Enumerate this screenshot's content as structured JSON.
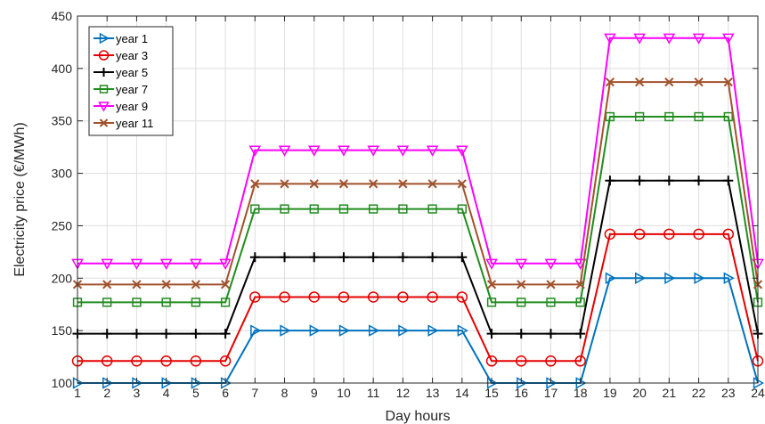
{
  "chart_data": {
    "type": "line",
    "xlabel": "Day hours",
    "ylabel": "Electricity price (€/MWh)",
    "x": [
      1,
      2,
      3,
      4,
      5,
      6,
      7,
      8,
      9,
      10,
      11,
      12,
      13,
      14,
      15,
      16,
      17,
      18,
      19,
      20,
      21,
      22,
      23,
      24
    ],
    "xlim": [
      1,
      24
    ],
    "ylim": [
      100,
      450
    ],
    "yticks": [
      100,
      150,
      200,
      250,
      300,
      350,
      400,
      450
    ],
    "grid": true,
    "legend_position": "top-left",
    "series": [
      {
        "name": "year 1",
        "color": "#0072BD",
        "marker": "triangle-right",
        "values": [
          100,
          100,
          100,
          100,
          100,
          100,
          150,
          150,
          150,
          150,
          150,
          150,
          150,
          150,
          100,
          100,
          100,
          100,
          200,
          200,
          200,
          200,
          200,
          100
        ]
      },
      {
        "name": "year 3",
        "color": "#E50000",
        "marker": "circle",
        "values": [
          121,
          121,
          121,
          121,
          121,
          121,
          182,
          182,
          182,
          182,
          182,
          182,
          182,
          182,
          121,
          121,
          121,
          121,
          242,
          242,
          242,
          242,
          242,
          121
        ]
      },
      {
        "name": "year 5",
        "color": "#000000",
        "marker": "plus",
        "values": [
          147,
          147,
          147,
          147,
          147,
          147,
          220,
          220,
          220,
          220,
          220,
          220,
          220,
          220,
          147,
          147,
          147,
          147,
          293,
          293,
          293,
          293,
          293,
          147
        ]
      },
      {
        "name": "year 7",
        "color": "#218C1E",
        "marker": "square",
        "values": [
          177,
          177,
          177,
          177,
          177,
          177,
          266,
          266,
          266,
          266,
          266,
          266,
          266,
          266,
          177,
          177,
          177,
          177,
          354,
          354,
          354,
          354,
          354,
          177
        ]
      },
      {
        "name": "year 9",
        "color": "#FF00FF",
        "marker": "triangle-down",
        "values": [
          214,
          214,
          214,
          214,
          214,
          214,
          322,
          322,
          322,
          322,
          322,
          322,
          322,
          322,
          214,
          214,
          214,
          214,
          429,
          429,
          429,
          429,
          429,
          214
        ]
      },
      {
        "name": "year 11",
        "color": "#A0522D",
        "marker": "x",
        "values": [
          194,
          194,
          194,
          194,
          194,
          194,
          290,
          290,
          290,
          290,
          290,
          290,
          290,
          290,
          194,
          194,
          194,
          194,
          387,
          387,
          387,
          387,
          387,
          194
        ]
      }
    ]
  }
}
